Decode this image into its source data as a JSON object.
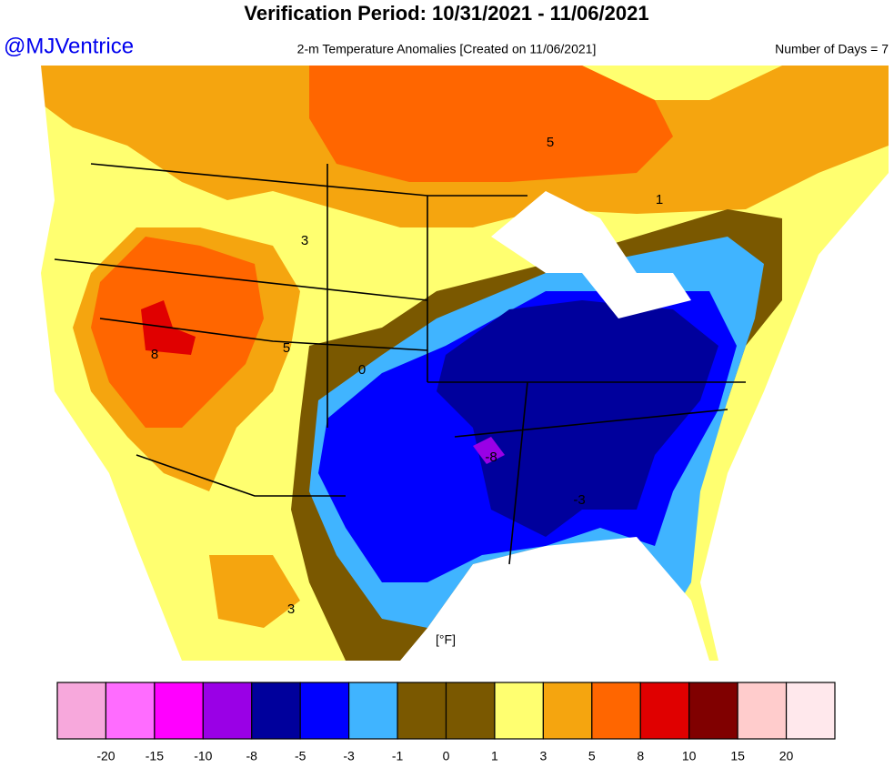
{
  "header": {
    "title": "Verification Period: 10/31/2021 - 11/06/2021",
    "handle": "@MJVentrice",
    "subtitle": "2-m Temperature Anomalies [Created on 11/06/2021]",
    "days": "Number of Days = 7"
  },
  "map": {
    "unit": "[°F]",
    "contour_labels": [
      5,
      3,
      5,
      8,
      0,
      -8,
      -3,
      3,
      1
    ]
  },
  "legend": {
    "colors": [
      "#f7a8dc",
      "#ff6cff",
      "#ff00ff",
      "#9a00e6",
      "#00009c",
      "#0000ff",
      "#40b4ff",
      "#7a5800",
      "#7a5800",
      "#ffff70",
      "#f5a50f",
      "#ff6600",
      "#e00000",
      "#800000",
      "#ffcccc",
      "#ffe8ec"
    ],
    "ticks": [
      -20,
      -15,
      -10,
      -8,
      -5,
      -3,
      -1,
      0,
      1,
      3,
      5,
      8,
      10,
      15,
      20
    ]
  }
}
